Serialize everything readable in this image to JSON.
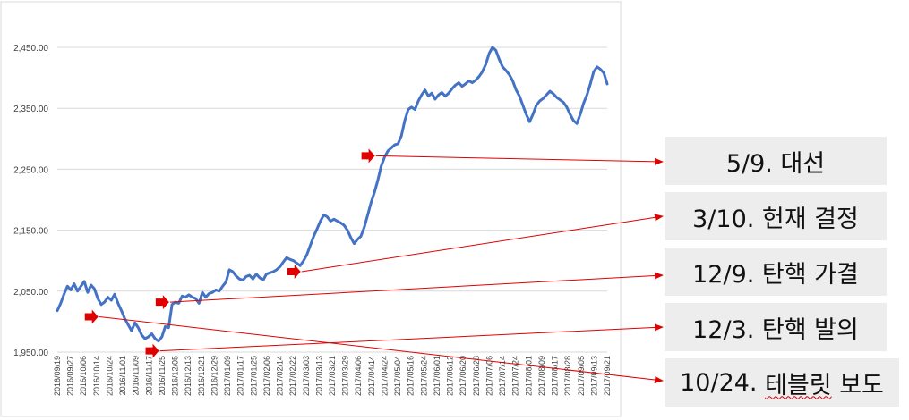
{
  "chart_data": {
    "type": "line",
    "title": "",
    "xlabel": "",
    "ylabel": "",
    "ylim": [
      1950,
      2450
    ],
    "y_ticks": [
      "1,950.00",
      "2,050.00",
      "2,150.00",
      "2,250.00",
      "2,350.00",
      "2,450.00"
    ],
    "grid": "horizontal",
    "series_color": "#4472c4",
    "x_ticks": [
      "2016/09/19",
      "2016/09/27",
      "2016/10/06",
      "2016/10/14",
      "2016/10/24",
      "2016/11/01",
      "2016/11/09",
      "2016/11/17",
      "2016/11/25",
      "2016/12/05",
      "2016/12/13",
      "2016/12/21",
      "2016/12/29",
      "2017/01/09",
      "2017/01/17",
      "2017/01/25",
      "2017/02/06",
      "2017/02/14",
      "2017/02/22",
      "2017/03/03",
      "2017/03/13",
      "2017/03/21",
      "2017/03/29",
      "2017/04/06",
      "2017/04/14",
      "2017/04/24",
      "2017/05/04",
      "2017/05/16",
      "2017/05/24",
      "2017/06/01",
      "2017/06/12",
      "2017/06/20",
      "2017/06/28",
      "2017/07/06",
      "2017/07/14",
      "2017/07/24",
      "2017/08/01",
      "2017/08/09",
      "2017/08/17",
      "2017/08/28",
      "2017/09/05",
      "2017/09/13",
      "2017/09/21"
    ],
    "values": [
      2018,
      2030,
      2045,
      2058,
      2052,
      2062,
      2050,
      2058,
      2066,
      2048,
      2060,
      2054,
      2038,
      2028,
      2032,
      2040,
      2035,
      2045,
      2030,
      2018,
      2005,
      1995,
      1985,
      1998,
      1990,
      1978,
      1972,
      1975,
      1980,
      1972,
      1968,
      1975,
      1992,
      1990,
      2028,
      2032,
      2030,
      2042,
      2040,
      2044,
      2040,
      2038,
      2030,
      2048,
      2040,
      2046,
      2048,
      2052,
      2050,
      2058,
      2065,
      2085,
      2082,
      2075,
      2070,
      2068,
      2074,
      2076,
      2070,
      2078,
      2072,
      2068,
      2078,
      2080,
      2082,
      2085,
      2090,
      2098,
      2105,
      2102,
      2100,
      2096,
      2092,
      2100,
      2110,
      2125,
      2140,
      2152,
      2165,
      2175,
      2172,
      2165,
      2168,
      2165,
      2162,
      2158,
      2150,
      2138,
      2128,
      2135,
      2140,
      2155,
      2175,
      2195,
      2212,
      2232,
      2255,
      2270,
      2280,
      2285,
      2290,
      2292,
      2305,
      2330,
      2348,
      2352,
      2348,
      2362,
      2372,
      2380,
      2370,
      2375,
      2365,
      2372,
      2376,
      2370,
      2375,
      2382,
      2388,
      2392,
      2386,
      2390,
      2395,
      2392,
      2396,
      2402,
      2410,
      2422,
      2440,
      2450,
      2445,
      2430,
      2418,
      2412,
      2405,
      2395,
      2380,
      2370,
      2355,
      2340,
      2328,
      2340,
      2355,
      2362,
      2366,
      2372,
      2378,
      2374,
      2368,
      2364,
      2360,
      2352,
      2340,
      2330,
      2325,
      2340,
      2358,
      2372,
      2390,
      2410,
      2418,
      2414,
      2408,
      2390
    ]
  },
  "annotations": [
    {
      "label": "5/9. 대선",
      "marker_value": 2272,
      "marker_index": 96
    },
    {
      "label": "3/10. 헌재 결정",
      "marker_value": 2082,
      "marker_index": 74
    },
    {
      "label": "12/9. 탄핵 가결",
      "marker_value": 2032,
      "marker_index": 35
    },
    {
      "label": "12/3. 탄핵 발의",
      "marker_value": 1952,
      "marker_index": 32
    },
    {
      "label_prefix": "10/24. ",
      "label_flagged": "테블릿",
      "label_suffix": " 보도",
      "marker_value": 2008,
      "marker_index": 14
    }
  ],
  "colors": {
    "arrow": "#e00000",
    "callout_bg": "#ededed",
    "grid": "#d9d9d9"
  }
}
